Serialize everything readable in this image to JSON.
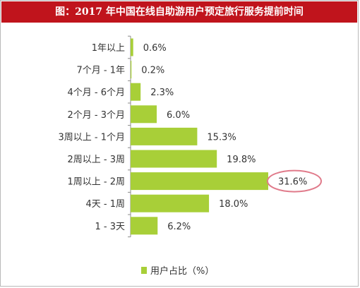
{
  "title": "图：2017 年中国在线自助游用户预定旅行服务提前时间",
  "chart_data": {
    "type": "bar",
    "orientation": "horizontal",
    "categories": [
      "1年以上",
      "7个月 - 1年",
      "4个月 - 6个月",
      "2个月 - 3个月",
      "3周以上 - 1个月",
      "2周以上 - 3周",
      "1周以上 - 2周",
      "4天 - 1周",
      "1 - 3天"
    ],
    "series": [
      {
        "name": "用户占比（%）",
        "values": [
          0.6,
          0.2,
          2.3,
          6.0,
          15.3,
          19.8,
          31.6,
          18.0,
          6.2
        ]
      }
    ],
    "value_labels": [
      "0.6%",
      "0.2%",
      "2.3%",
      "6.0%",
      "15.3%",
      "19.8%",
      "31.6%",
      "18.0%",
      "6.2%"
    ],
    "highlight_index": 6,
    "xlim": [
      0,
      32
    ],
    "grid": false,
    "legend_position": "bottom",
    "colors": {
      "bar": "#a8cf38",
      "highlight_ring": "#e07a8a",
      "title_bg": "#c0141c"
    }
  }
}
